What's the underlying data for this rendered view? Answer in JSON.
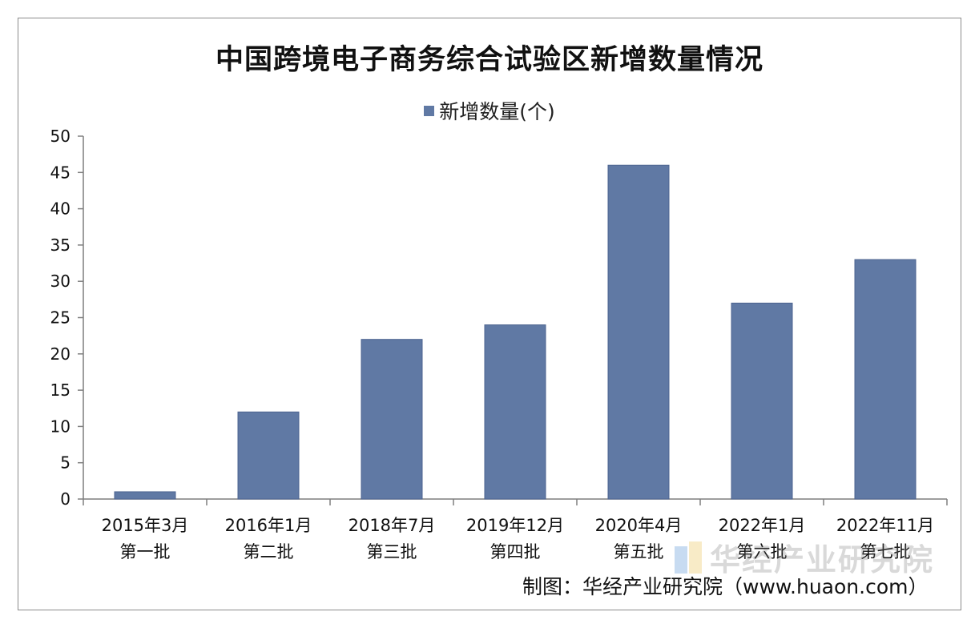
{
  "chart_data": {
    "type": "bar",
    "title": "中国跨境电子商务综合试验区新增数量情况",
    "legend": {
      "position": "top-center",
      "entries": [
        "新增数量(个)"
      ]
    },
    "categories": [
      [
        "2015年3月",
        "第一批"
      ],
      [
        "2016年1月",
        "第二批"
      ],
      [
        "2018年7月",
        "第三批"
      ],
      [
        "2019年12月",
        "第四批"
      ],
      [
        "2020年4月",
        "第五批"
      ],
      [
        "2022年1月",
        "第六批"
      ],
      [
        "2022年11月",
        "第七批"
      ]
    ],
    "series": [
      {
        "name": "新增数量(个)",
        "values": [
          1,
          12,
          22,
          24,
          46,
          27,
          33
        ],
        "color": "#6079a4"
      }
    ],
    "ylim": [
      0,
      50
    ],
    "yticks": [
      0,
      5,
      10,
      15,
      20,
      25,
      30,
      35,
      40,
      45,
      50
    ],
    "grid": false
  },
  "watermark": {
    "text": "华经产业研究院"
  },
  "source": "制图：华经产业研究院（www.huaon.com）"
}
